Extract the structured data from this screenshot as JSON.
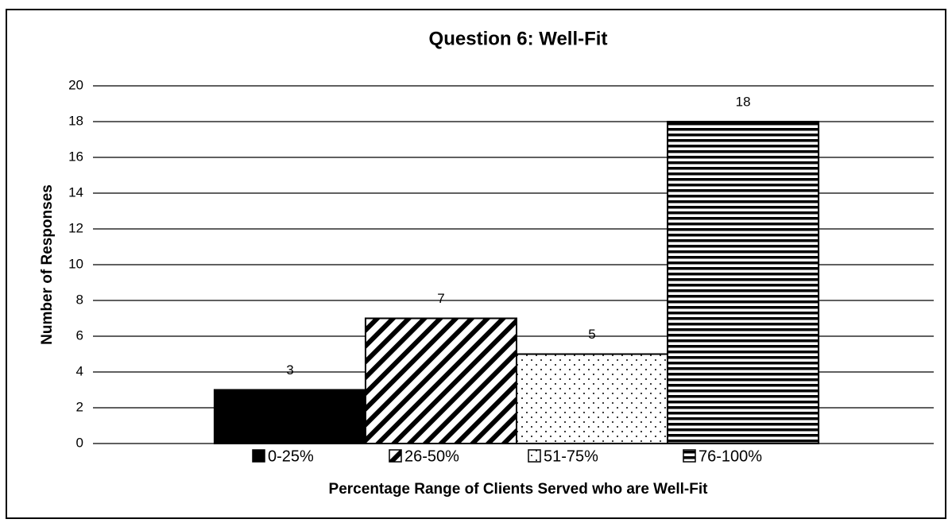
{
  "chart_data": {
    "type": "bar",
    "title": "Question 6: Well-Fit",
    "x_label": "Percentage Range of Clients Served who are Well-Fit",
    "y_label": "Number of Responses",
    "categories": [
      null
    ],
    "series": [
      {
        "name": "0-25%",
        "color": "#000000",
        "pattern": "solid",
        "values": [
          3
        ]
      },
      {
        "name": "26-50%",
        "color": "#000000",
        "pattern": "diagonal",
        "values": [
          7
        ]
      },
      {
        "name": "51-75%",
        "color": "#000000",
        "pattern": "dots",
        "values": [
          5
        ]
      },
      {
        "name": "76-100%",
        "color": "#000000",
        "pattern": "horizontal",
        "values": [
          18
        ]
      }
    ],
    "ylim": [
      0,
      20
    ],
    "yticks": [
      0,
      2,
      4,
      6,
      8,
      10,
      12,
      14,
      16,
      18,
      20
    ],
    "grid": true,
    "legend": "bottom"
  }
}
